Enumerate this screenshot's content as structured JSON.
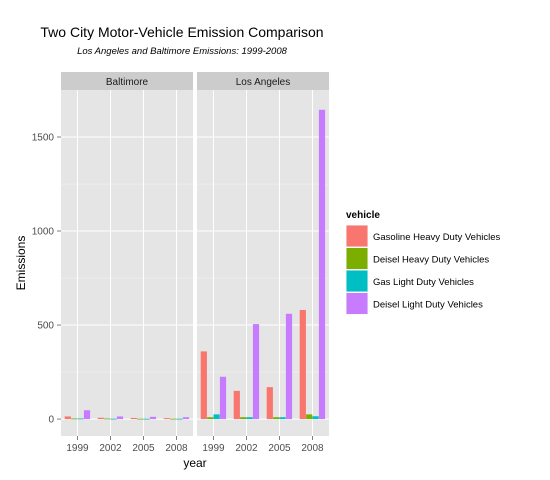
{
  "chart_data": {
    "type": "bar",
    "title": "Two City Motor-Vehicle Emission Comparison",
    "subtitle": "Los Angeles and Baltimore Emissions: 1999-2008",
    "xlabel": "year",
    "ylabel": "Emissions",
    "ylim": [
      -90,
      1750
    ],
    "yticks": [
      0,
      500,
      1000,
      1500
    ],
    "categories": [
      "1999",
      "2002",
      "2005",
      "2008"
    ],
    "legend": {
      "title": "vehicle",
      "position": "right",
      "entries": [
        {
          "name": "Gasoline Heavy Duty Vehicles",
          "color": "#F8766D"
        },
        {
          "name": "Deisel Heavy Duty Vehicles",
          "color": "#7CAE00"
        },
        {
          "name": "Gas Light Duty Vehicles",
          "color": "#00BFC4"
        },
        {
          "name": "Deisel Light Duty Vehicles",
          "color": "#C77CFF"
        }
      ]
    },
    "panels": [
      {
        "name": "Baltimore",
        "series": [
          {
            "name": "Gasoline Heavy Duty Vehicles",
            "values": [
              14,
              7,
              6,
              5
            ]
          },
          {
            "name": "Deisel Heavy Duty Vehicles",
            "values": [
              3,
              3,
              2,
              2
            ]
          },
          {
            "name": "Gas Light Duty Vehicles",
            "values": [
              3,
              2,
              2,
              2
            ]
          },
          {
            "name": "Deisel Light Duty Vehicles",
            "values": [
              47,
              14,
              12,
              10
            ]
          }
        ]
      },
      {
        "name": "Los Angeles",
        "series": [
          {
            "name": "Gasoline Heavy Duty Vehicles",
            "values": [
              360,
              150,
              170,
              580
            ]
          },
          {
            "name": "Deisel Heavy Duty Vehicles",
            "values": [
              10,
              10,
              10,
              25
            ]
          },
          {
            "name": "Gas Light Duty Vehicles",
            "values": [
              25,
              10,
              10,
              15
            ]
          },
          {
            "name": "Deisel Light Duty Vehicles",
            "values": [
              225,
              505,
              560,
              1645
            ]
          }
        ]
      }
    ],
    "grid": true
  }
}
